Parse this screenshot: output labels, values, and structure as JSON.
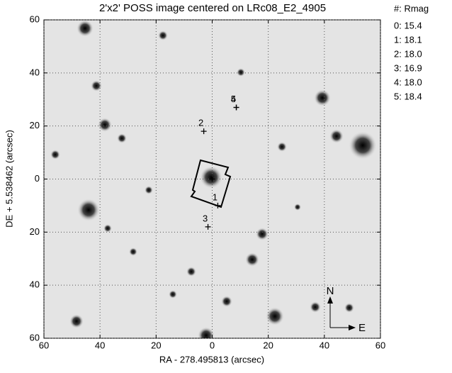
{
  "chart_data": {
    "type": "scatter",
    "title": "2'x2' POSS image centered on LRc08_E2_4905",
    "xlabel": "RA - 278.495813 (arcsec)",
    "ylabel": "DE + 5.538462 (arcsec)",
    "xlim": [
      -60,
      60
    ],
    "ylim": [
      -60,
      60
    ],
    "xticks": [
      {
        "value": -60,
        "label": "60"
      },
      {
        "value": -40,
        "label": "40"
      },
      {
        "value": -20,
        "label": "20"
      },
      0,
      20,
      40,
      60
    ],
    "yticks": [
      {
        "value": -60,
        "label": "60"
      },
      {
        "value": -40,
        "label": "40"
      },
      {
        "value": -20,
        "label": "20"
      },
      0,
      20,
      40,
      60
    ],
    "grid": true,
    "x": [
      0,
      2,
      -3,
      -1.5,
      8.6,
      8.6
    ],
    "y": [
      0,
      -10,
      18,
      -18,
      27,
      27
    ],
    "labels": [
      null,
      "1",
      "2",
      "3",
      "4",
      "5"
    ],
    "legend": {
      "title": "#: Rmag",
      "entries": [
        "0: 15.4",
        "1: 18.1",
        "2: 18.0",
        "3: 16.9",
        "4: 18.0",
        "5: 18.4"
      ]
    },
    "compass": {
      "north": "N",
      "east": "E"
    }
  }
}
